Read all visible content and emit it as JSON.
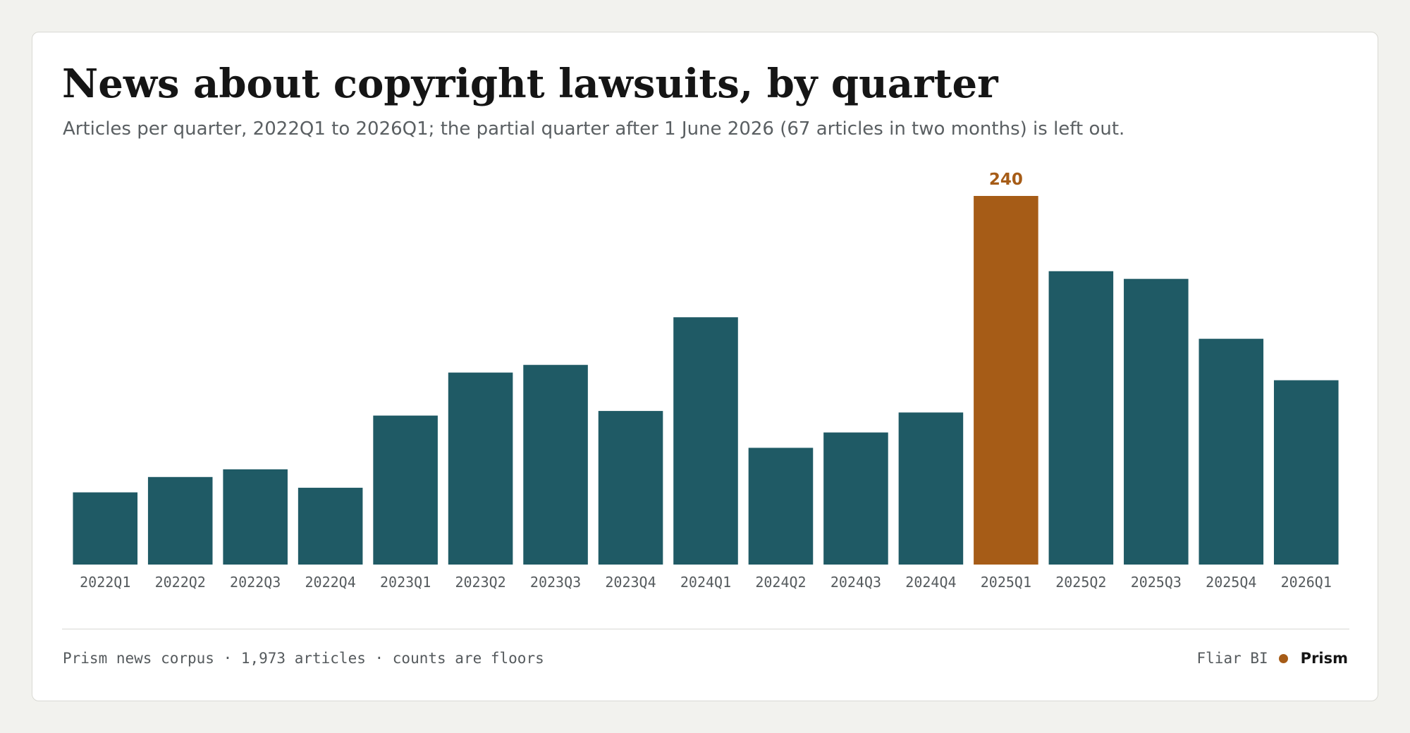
{
  "header": {
    "title": "News about copyright lawsuits, by quarter",
    "subtitle": "Articles per quarter, 2022Q1 to 2026Q1; the partial quarter after 1 June 2026 (67 articles in two months) is left out."
  },
  "footer": {
    "source": "Prism news corpus · 1,973 articles · counts are floors",
    "tool": "Fliar BI",
    "brand": "Prism"
  },
  "colors": {
    "bar": "#1f5a65",
    "highlight": "#a65c17",
    "tick_label": "#555a5d",
    "brand_dot": "#a65c17"
  },
  "chart_data": {
    "type": "bar",
    "title": "News about copyright lawsuits, by quarter",
    "subtitle": "Articles per quarter, 2022Q1 to 2026Q1; the partial quarter after 1 June 2026 (67 articles in two months) is left out.",
    "xlabel": "",
    "ylabel": "",
    "categories": [
      "2022Q1",
      "2022Q2",
      "2022Q3",
      "2022Q4",
      "2023Q1",
      "2023Q2",
      "2023Q3",
      "2023Q4",
      "2024Q1",
      "2024Q2",
      "2024Q3",
      "2024Q4",
      "2025Q1",
      "2025Q2",
      "2025Q3",
      "2025Q4",
      "2026Q1"
    ],
    "values": [
      47,
      57,
      62,
      50,
      97,
      125,
      130,
      100,
      161,
      76,
      86,
      99,
      240,
      191,
      186,
      147,
      120
    ],
    "highlight": {
      "category": "2025Q1",
      "value": 240,
      "label": "240"
    },
    "ylim": [
      0,
      240
    ],
    "grid": false,
    "legend": "none"
  }
}
